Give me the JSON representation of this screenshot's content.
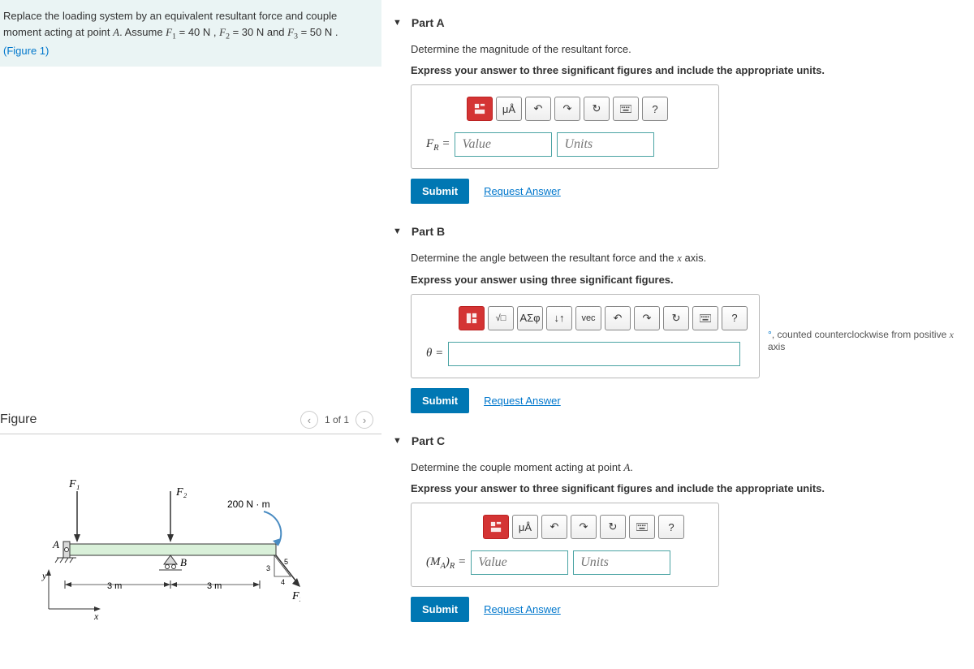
{
  "problem": {
    "text_pre": "Replace the loading system by an equivalent resultant force and couple moment acting at point ",
    "point": "A",
    "text_assume": ". Assume ",
    "f1_var": "F",
    "f1_sub": "1",
    "f1_eq": " = 40 N , ",
    "f2_var": "F",
    "f2_sub": "2",
    "f2_eq": " = 30 N and ",
    "f3_var": "F",
    "f3_sub": "3",
    "f3_eq": " = 50 N . ",
    "figure_ref": "(Figure 1)"
  },
  "figure_section": {
    "title": "Figure",
    "pager": "1 of 1",
    "diagram": {
      "F1_label": "F₁",
      "F2_label": "F₂",
      "F3_label": "F₃",
      "moment_label": "200 N · m",
      "A_label": "A",
      "B_label": "B",
      "dim_left": "3 m",
      "dim_right": "3 m",
      "y_label": "y",
      "x_label": "x",
      "tri_v": "5",
      "tri_h": "4",
      "tri_hyp": "3",
      "colors": {
        "beam": "#d9f0d9",
        "blue": "#3b6fa8",
        "arc": "#4a8cc2",
        "support": "#d9d9d9"
      }
    }
  },
  "parts": {
    "A": {
      "title": "Part A",
      "prompt": "Determine the magnitude of the resultant force.",
      "instr": "Express your answer to three significant figures and include the appropriate units.",
      "var_html": "F<sub style='font-size:0.7em'>R</sub> =",
      "value_ph": "Value",
      "units_ph": "Units",
      "submit": "Submit",
      "request": "Request Answer",
      "tools": {
        "units": "μÅ",
        "help": "?"
      }
    },
    "B": {
      "title": "Part B",
      "prompt_pre": "Determine the angle between the resultant force and the ",
      "prompt_var": "x",
      "prompt_post": " axis.",
      "instr": "Express your answer using three significant figures.",
      "var_html": "θ =",
      "submit": "Submit",
      "request": "Request Answer",
      "hint_pre": ", counted counterclockwise from positive ",
      "hint_var": "x",
      "hint_post": " axis",
      "tools": {
        "greek": "ΑΣφ",
        "sub": "↓↑",
        "vec": "vec",
        "help": "?"
      }
    },
    "C": {
      "title": "Part C",
      "prompt_pre": "Determine the couple moment acting at point ",
      "prompt_var": "A",
      "prompt_post": ".",
      "instr": "Express your answer to three significant figures and include the appropriate units.",
      "var_html": "(M<sub style='font-size:0.7em'>A</sub>)<sub style='font-size:0.7em'>R</sub> =",
      "value_ph": "Value",
      "units_ph": "Units",
      "submit": "Submit",
      "request": "Request Answer",
      "tools": {
        "units": "μÅ",
        "help": "?"
      }
    }
  }
}
